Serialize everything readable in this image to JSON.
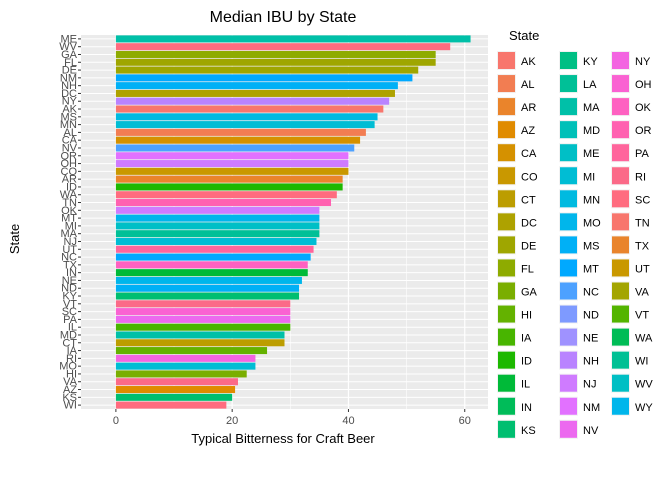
{
  "chart_data": {
    "type": "bar",
    "orientation": "horizontal",
    "title": "Median IBU by State",
    "xlabel": "Typical Bitterness for Craft Beer",
    "ylabel": "State",
    "xlim": [
      -6,
      64
    ],
    "xticks": [
      0,
      20,
      40,
      60
    ],
    "grid": true,
    "legend": {
      "title": "State",
      "placement": "right",
      "columns": 3,
      "entries": [
        "AK",
        "AL",
        "AR",
        "AZ",
        "CA",
        "CO",
        "CT",
        "DC",
        "DE",
        "FL",
        "GA",
        "HI",
        "IA",
        "ID",
        "IL",
        "IN",
        "KS",
        "KY",
        "LA",
        "MA",
        "MD",
        "ME",
        "MI",
        "MN",
        "MO",
        "MS",
        "MT",
        "NC",
        "ND",
        "NE",
        "NH",
        "NJ",
        "NM",
        "NV",
        "NY",
        "OH",
        "OK",
        "OR",
        "PA",
        "RI",
        "SC",
        "TN",
        "TX",
        "UT",
        "VA",
        "VT",
        "WA",
        "WI",
        "WV",
        "WY"
      ],
      "colors": [
        "#F8766D",
        "#F27D52",
        "#EA842B",
        "#E08B00",
        "#D59100",
        "#C99800",
        "#BC9D00",
        "#AEA200",
        "#9FA600",
        "#8EAB00",
        "#7AAE00",
        "#64B200",
        "#48B500",
        "#1DB800",
        "#00BA38",
        "#00BC59",
        "#00BE70",
        "#00BF84",
        "#00C097",
        "#00C0A8",
        "#00C0B8",
        "#00BFC6",
        "#00BDD4",
        "#00BAE0",
        "#00B6EB",
        "#00B0F6",
        "#00A9FF",
        "#4DA1FF",
        "#7E9AFF",
        "#9F92FF",
        "#B983FF",
        "#CF7BFF",
        "#E271FF",
        "#EC69EF",
        "#F365E1",
        "#FA62D2",
        "#FE61C1",
        "#FF61B0",
        "#FF659C",
        "#FB6A88",
        "#FF6C7F",
        "#F8766D",
        "#E9842C",
        "#C99800",
        "#A3A500",
        "#53B400",
        "#00BC56",
        "#00C094",
        "#00BFC4",
        "#00B6EB"
      ]
    },
    "categories": [
      "ME",
      "WV",
      "GA",
      "FL",
      "DE",
      "NM",
      "NH",
      "DC",
      "NY",
      "AK",
      "MS",
      "MN",
      "AL",
      "CA",
      "NV",
      "OR",
      "OH",
      "CO",
      "AR",
      "ID",
      "WA",
      "TN",
      "OK",
      "MT",
      "MI",
      "MA",
      "NJ",
      "UT",
      "NC",
      "TX",
      "IN",
      "NE",
      "ND",
      "KY",
      "VT",
      "SC",
      "PA",
      "IL",
      "MD",
      "CT",
      "IA",
      "RI",
      "MO",
      "HI",
      "VA",
      "AZ",
      "KS",
      "WI"
    ],
    "values": [
      61,
      57.5,
      55,
      55,
      52,
      51,
      48.5,
      48,
      47,
      46,
      45,
      44.5,
      43,
      42,
      41,
      40,
      40,
      40,
      39,
      39,
      38,
      37,
      35,
      35,
      35,
      35,
      34.5,
      34,
      33.5,
      33,
      33,
      32,
      31.5,
      31.5,
      30,
      30,
      30,
      30,
      29,
      29,
      26,
      24,
      24,
      22.5,
      21,
      20.5,
      20,
      19
    ],
    "bar_colors": [
      "#00C0A8",
      "#FF6C7F",
      "#8EAB00",
      "#9FA600",
      "#9FA600",
      "#00A9FF",
      "#00B0F6",
      "#AEA200",
      "#B983FF",
      "#F8766D",
      "#00BAE0",
      "#00BDD4",
      "#F27D52",
      "#D59100",
      "#4DA1FF",
      "#E271FF",
      "#CF7BFF",
      "#C99800",
      "#EA842B",
      "#1DB800",
      "#FF6C7F",
      "#FF61B0",
      "#CF7BFF",
      "#00B6EB",
      "#00BFC6",
      "#00C097",
      "#00BDD4",
      "#FF659C",
      "#00A9FF",
      "#FE61C1",
      "#00BA38",
      "#00B6EB",
      "#00B0F6",
      "#00BE70",
      "#FB6A88",
      "#FA62D2",
      "#EC69EF",
      "#48B500",
      "#00C0A8",
      "#BC9D00",
      "#64B200",
      "#F365E1",
      "#00BDD4",
      "#7AAE00",
      "#FB6A88",
      "#E08B00",
      "#00BE70",
      "#FF6C7F"
    ]
  }
}
